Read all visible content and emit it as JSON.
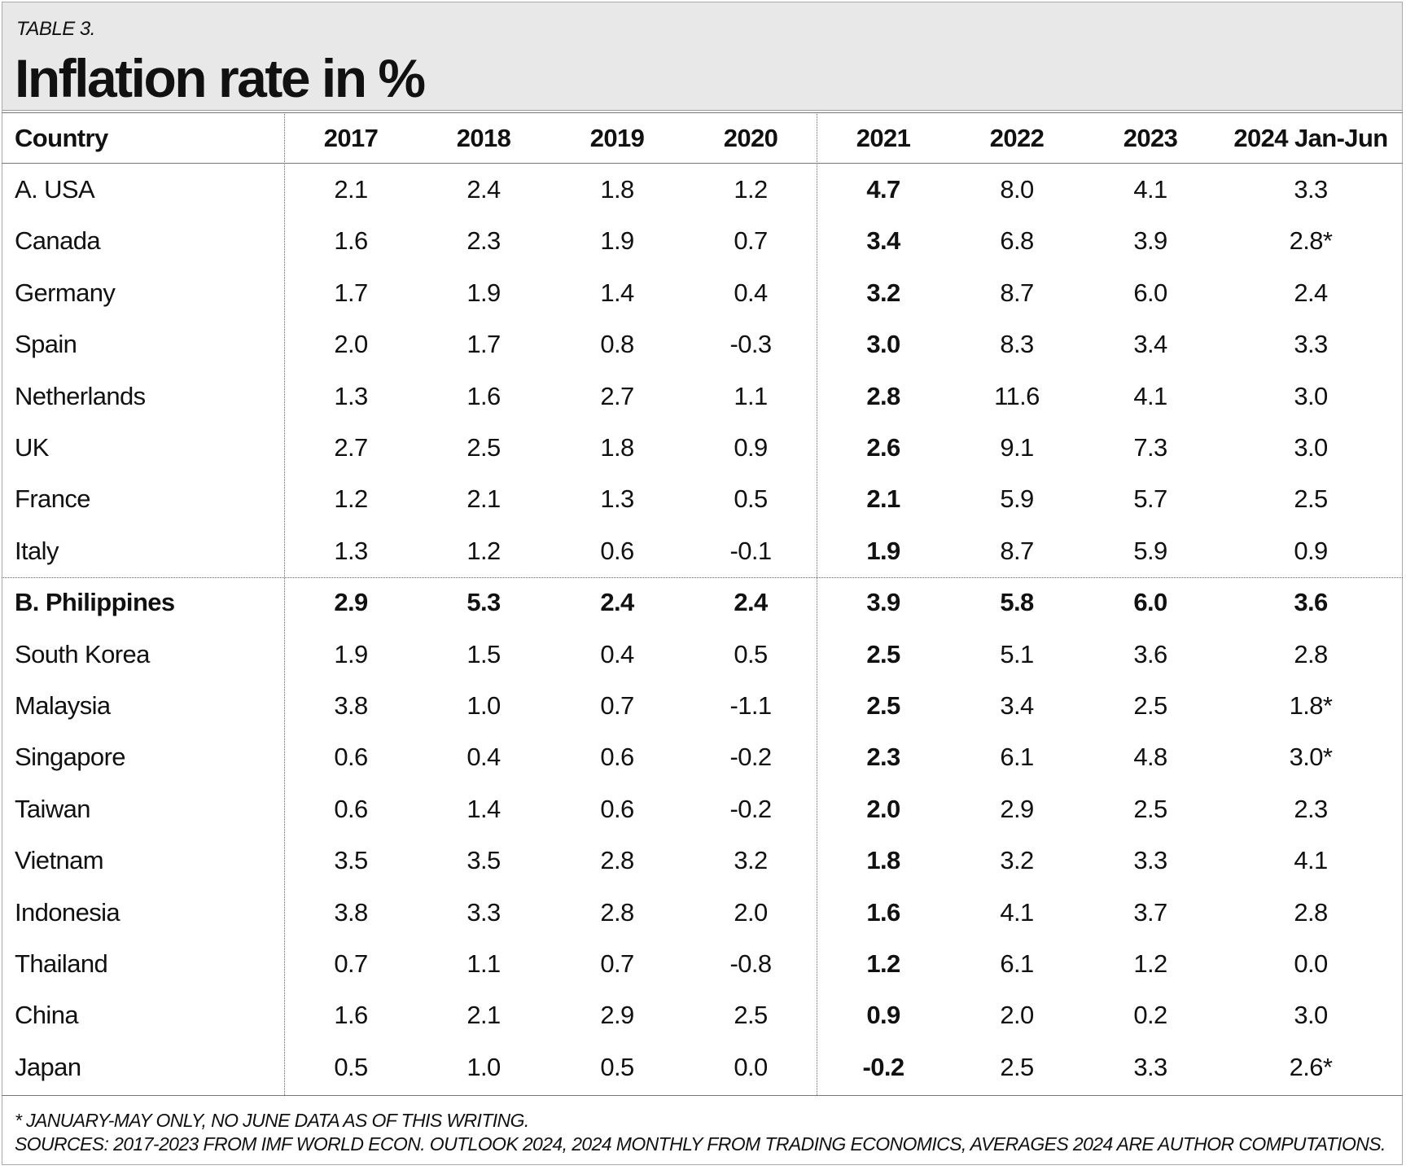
{
  "header": {
    "label": "TABLE 3.",
    "title": "Inflation rate in %"
  },
  "table": {
    "columns": [
      "Country",
      "2017",
      "2018",
      "2019",
      "2020",
      "2021",
      "2022",
      "2023",
      "2024 Jan-Jun"
    ],
    "rows": [
      [
        "A. USA",
        "2.1",
        "2.4",
        "1.8",
        "1.2",
        "4.7",
        "8.0",
        "4.1",
        "3.3"
      ],
      [
        "Canada",
        "1.6",
        "2.3",
        "1.9",
        "0.7",
        "3.4",
        "6.8",
        "3.9",
        "2.8*"
      ],
      [
        "Germany",
        "1.7",
        "1.9",
        "1.4",
        "0.4",
        "3.2",
        "8.7",
        "6.0",
        "2.4"
      ],
      [
        "Spain",
        "2.0",
        "1.7",
        "0.8",
        "-0.3",
        "3.0",
        "8.3",
        "3.4",
        "3.3"
      ],
      [
        "Netherlands",
        "1.3",
        "1.6",
        "2.7",
        "1.1",
        "2.8",
        "11.6",
        "4.1",
        "3.0"
      ],
      [
        "UK",
        "2.7",
        "2.5",
        "1.8",
        "0.9",
        "2.6",
        "9.1",
        "7.3",
        "3.0"
      ],
      [
        "France",
        "1.2",
        "2.1",
        "1.3",
        "0.5",
        "2.1",
        "5.9",
        "5.7",
        "2.5"
      ],
      [
        "Italy",
        "1.3",
        "1.2",
        "0.6",
        "-0.1",
        "1.9",
        "8.7",
        "5.9",
        "0.9"
      ],
      [
        "B. Philippines",
        "2.9",
        "5.3",
        "2.4",
        "2.4",
        "3.9",
        "5.8",
        "6.0",
        "3.6"
      ],
      [
        "South Korea",
        "1.9",
        "1.5",
        "0.4",
        "0.5",
        "2.5",
        "5.1",
        "3.6",
        "2.8"
      ],
      [
        "Malaysia",
        "3.8",
        "1.0",
        "0.7",
        "-1.1",
        "2.5",
        "3.4",
        "2.5",
        "1.8*"
      ],
      [
        "Singapore",
        "0.6",
        "0.4",
        "0.6",
        "-0.2",
        "2.3",
        "6.1",
        "4.8",
        "3.0*"
      ],
      [
        "Taiwan",
        "0.6",
        "1.4",
        "0.6",
        "-0.2",
        "2.0",
        "2.9",
        "2.5",
        "2.3"
      ],
      [
        "Vietnam",
        "3.5",
        "3.5",
        "2.8",
        "3.2",
        "1.8",
        "3.2",
        "3.3",
        "4.1"
      ],
      [
        "Indonesia",
        "3.8",
        "3.3",
        "2.8",
        "2.0",
        "1.6",
        "4.1",
        "3.7",
        "2.8"
      ],
      [
        "Thailand",
        "0.7",
        "1.1",
        "0.7",
        "-0.8",
        "1.2",
        "6.1",
        "1.2",
        "0.0"
      ],
      [
        "China",
        "1.6",
        "2.1",
        "2.9",
        "2.5",
        "0.9",
        "2.0",
        "0.2",
        "3.0"
      ],
      [
        "Japan",
        "0.5",
        "1.0",
        "0.5",
        "0.0",
        "-0.2",
        "2.5",
        "3.3",
        "2.6*"
      ]
    ]
  },
  "footnotes": [
    "* JANUARY-MAY ONLY, NO JUNE DATA AS OF THIS WRITING.",
    "SOURCES: 2017-2023 FROM IMF WORLD ECON. OUTLOOK 2024, 2024 MONTHLY FROM TRADING ECONOMICS, AVERAGES 2024 ARE AUTHOR COMPUTATIONS."
  ]
}
